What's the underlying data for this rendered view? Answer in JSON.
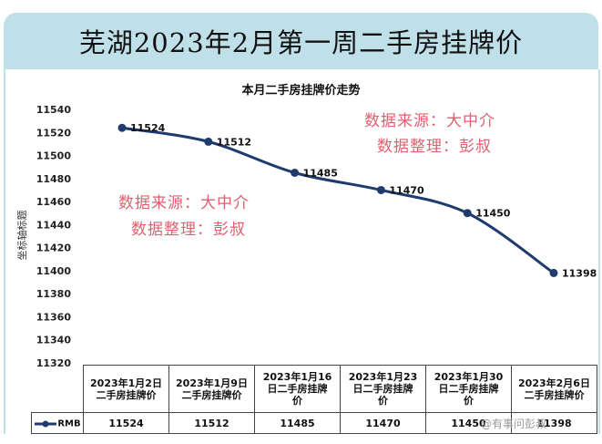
{
  "banner_title": "芜湖2023年2月第一周二手房挂牌价",
  "chart_data": {
    "type": "line",
    "title": "本月二手房挂牌价走势",
    "ylabel": "坐标轴标题",
    "ylim": [
      11320,
      11540
    ],
    "yticks": [
      11320,
      11340,
      11360,
      11380,
      11400,
      11420,
      11440,
      11460,
      11480,
      11500,
      11520,
      11540
    ],
    "categories": [
      "2023年1月2日二手房挂牌价",
      "2023年1月9日二手房挂牌价",
      "2023年1月16日二手房挂牌价",
      "2023年1月23日二手房挂牌价",
      "2023年1月30日二手房挂牌价",
      "2023年2月6日二手房挂牌价"
    ],
    "series": [
      {
        "name": "RMB",
        "values": [
          11524,
          11512,
          11485,
          11470,
          11450,
          11398
        ]
      }
    ],
    "grid": false,
    "legend": "data-table",
    "series_color": "#1f3b6e"
  },
  "table": {
    "headers": [
      [
        "2023年1月2日",
        "二手房挂牌价"
      ],
      [
        "2023年1月9日",
        "二手房挂牌价"
      ],
      [
        "2023年1月16",
        "日二手房挂牌",
        "价"
      ],
      [
        "2023年1月23",
        "日二手房挂牌",
        "价"
      ],
      [
        "2023年1月30",
        "日二手房挂牌",
        "价"
      ],
      [
        "2023年2月6日",
        "二手房挂牌价"
      ]
    ],
    "legend_label": "RMB",
    "values": [
      "11524",
      "11512",
      "11485",
      "11470",
      "11450",
      "11398"
    ]
  },
  "watermarks": {
    "line1": "数据来源：大中介",
    "line2": "数据整理：彭叔"
  },
  "credit": "@有事问彭叔"
}
